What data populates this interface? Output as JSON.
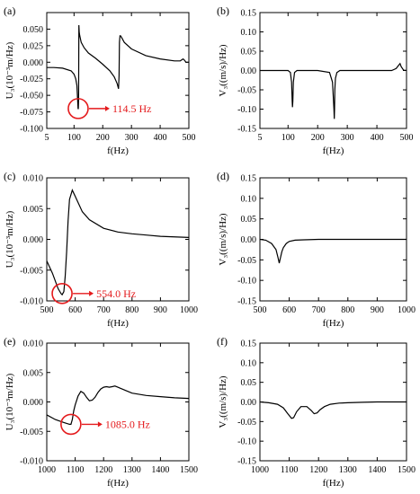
{
  "chart_data": [
    {
      "panel": "(a)",
      "type": "line",
      "xlabel": "f(Hz)",
      "ylabel": "U₃(10⁻³m/Hz)",
      "xlim": [
        5,
        500
      ],
      "ylim": [
        -0.1,
        0.075
      ],
      "xticks": [
        5,
        100,
        200,
        300,
        400,
        500
      ],
      "yticks": [
        -0.1,
        -0.075,
        -0.05,
        -0.025,
        0.0,
        0.025,
        0.05
      ],
      "ytick_labels": [
        "-0.100",
        "-0.075",
        "-0.050",
        "-0.025",
        "0.000",
        "0.025",
        "0.050"
      ],
      "series": [
        {
          "x": [
            5,
            30,
            60,
            90,
            100,
            106,
            110,
            114,
            115,
            116,
            117,
            118,
            120,
            125,
            135,
            150,
            175,
            200,
            225,
            240,
            250,
            255,
            257,
            258,
            260,
            262,
            265,
            275,
            300,
            350,
            400,
            450,
            470,
            480,
            485,
            490,
            500
          ],
          "y": [
            -0.008,
            -0.008,
            -0.009,
            -0.013,
            -0.018,
            -0.025,
            -0.035,
            -0.07,
            -0.07,
            -0.055,
            0.056,
            0.045,
            0.04,
            0.03,
            0.022,
            0.014,
            0.006,
            -0.003,
            -0.013,
            -0.022,
            -0.032,
            -0.04,
            -0.02,
            0.03,
            0.04,
            0.04,
            0.038,
            0.03,
            0.02,
            0.01,
            0.005,
            0.002,
            0.002,
            0.005,
            0.003,
            0.0,
            0.0
          ]
        }
      ],
      "annotation": {
        "text": "114.5 Hz",
        "x": 114.5,
        "y": -0.07
      }
    },
    {
      "panel": "(b)",
      "type": "line",
      "xlabel": "f(Hz)",
      "ylabel": "V₃((m/s)/Hz)",
      "xlim": [
        5,
        500
      ],
      "ylim": [
        -0.15,
        0.15
      ],
      "xticks": [
        5,
        100,
        200,
        300,
        400,
        500
      ],
      "yticks": [
        -0.15,
        -0.1,
        -0.05,
        0.0,
        0.05,
        0.1,
        0.15
      ],
      "ytick_labels": [
        "-0.15",
        "-0.10",
        "-0.05",
        "0.00",
        "0.05",
        "0.10",
        "0.15"
      ],
      "series": [
        {
          "x": [
            5,
            100,
            108,
            112,
            114,
            115,
            116,
            118,
            122,
            130,
            200,
            240,
            250,
            255,
            256,
            257,
            258,
            260,
            265,
            275,
            300,
            400,
            450,
            465,
            472,
            478,
            482,
            490,
            500
          ],
          "y": [
            0.0,
            0.0,
            -0.005,
            -0.03,
            -0.08,
            -0.095,
            -0.08,
            -0.03,
            -0.005,
            0.0,
            0.0,
            -0.005,
            -0.03,
            -0.1,
            -0.125,
            -0.1,
            -0.05,
            -0.02,
            -0.005,
            0.0,
            0.0,
            0.0,
            0.0,
            0.005,
            0.012,
            0.018,
            0.01,
            0.001,
            0.0
          ]
        }
      ]
    },
    {
      "panel": "(c)",
      "type": "line",
      "xlabel": "f(Hz)",
      "ylabel": "U₃(10⁻³m/Hz)",
      "xlim": [
        500,
        1000
      ],
      "ylim": [
        -0.01,
        0.01
      ],
      "xticks": [
        500,
        600,
        700,
        800,
        900,
        1000
      ],
      "yticks": [
        -0.01,
        -0.005,
        0.0,
        0.005,
        0.01
      ],
      "ytick_labels": [
        "-0.010",
        "-0.005",
        "0.000",
        "0.005",
        "0.010"
      ],
      "series": [
        {
          "x": [
            500,
            520,
            540,
            550,
            554,
            560,
            565,
            570,
            575,
            580,
            590,
            600,
            625,
            650,
            700,
            750,
            800,
            850,
            900,
            1000
          ],
          "y": [
            -0.0035,
            -0.0055,
            -0.008,
            -0.0088,
            -0.009,
            -0.0085,
            -0.006,
            -0.002,
            0.003,
            0.0065,
            0.008,
            0.007,
            0.0045,
            0.0032,
            0.0018,
            0.0012,
            0.0009,
            0.0007,
            0.0005,
            0.0003
          ]
        }
      ],
      "annotation": {
        "text": "554.0 Hz",
        "x": 554.0,
        "y": -0.0088
      }
    },
    {
      "panel": "(d)",
      "type": "line",
      "xlabel": "f(Hz)",
      "ylabel": "V₃((m/s)/Hz)",
      "xlim": [
        500,
        1000
      ],
      "ylim": [
        -0.15,
        0.15
      ],
      "xticks": [
        500,
        600,
        700,
        800,
        900,
        1000
      ],
      "yticks": [
        -0.15,
        -0.1,
        -0.05,
        0.0,
        0.05,
        0.1,
        0.15
      ],
      "ytick_labels": [
        "-0.15",
        "-0.10",
        "-0.05",
        "0.00",
        "0.05",
        "0.10",
        "0.15"
      ],
      "series": [
        {
          "x": [
            500,
            520,
            540,
            555,
            562,
            566,
            570,
            575,
            580,
            590,
            600,
            620,
            650,
            700,
            800,
            900,
            1000
          ],
          "y": [
            0.0,
            -0.002,
            -0.01,
            -0.025,
            -0.045,
            -0.058,
            -0.045,
            -0.03,
            -0.02,
            -0.01,
            -0.005,
            -0.002,
            -0.001,
            0.0,
            0.0,
            0.0,
            0.0
          ]
        }
      ]
    },
    {
      "panel": "(e)",
      "type": "line",
      "xlabel": "f(Hz)",
      "ylabel": "U₃(10⁻³m/Hz)",
      "xlim": [
        1000,
        1500
      ],
      "ylim": [
        -0.01,
        0.01
      ],
      "xticks": [
        1000,
        1100,
        1200,
        1300,
        1400,
        1500
      ],
      "yticks": [
        -0.01,
        -0.005,
        0.0,
        0.005,
        0.01
      ],
      "ytick_labels": [
        "-0.010",
        "-0.005",
        "0.000",
        "0.005",
        "0.010"
      ],
      "series": [
        {
          "x": [
            1000,
            1030,
            1060,
            1080,
            1085,
            1090,
            1095,
            1100,
            1110,
            1120,
            1130,
            1140,
            1150,
            1160,
            1170,
            1180,
            1190,
            1200,
            1210,
            1220,
            1230,
            1240,
            1250,
            1260,
            1280,
            1300,
            1350,
            1400,
            1450,
            1500
          ],
          "y": [
            -0.0022,
            -0.003,
            -0.0035,
            -0.0038,
            -0.0038,
            -0.003,
            -0.0015,
            -0.0005,
            0.001,
            0.0018,
            0.0015,
            0.0008,
            0.0002,
            0.0003,
            0.0008,
            0.0016,
            0.0022,
            0.0025,
            0.0026,
            0.0025,
            0.0026,
            0.0027,
            0.0025,
            0.0023,
            0.0019,
            0.0015,
            0.0011,
            0.0009,
            0.0007,
            0.0006
          ]
        }
      ],
      "annotation": {
        "text": "1085.0 Hz",
        "x": 1085.0,
        "y": -0.0038
      }
    },
    {
      "panel": "(f)",
      "type": "line",
      "xlabel": "f(Hz)",
      "ylabel": "V₃((m/s)/Hz)",
      "xlim": [
        1000,
        1500
      ],
      "ylim": [
        -0.15,
        0.15
      ],
      "xticks": [
        1000,
        1100,
        1200,
        1300,
        1400,
        1500
      ],
      "yticks": [
        -0.15,
        -0.1,
        -0.05,
        0.0,
        0.05,
        0.1,
        0.15
      ],
      "ytick_labels": [
        "-0.15",
        "-0.10",
        "-0.05",
        "0.00",
        "0.05",
        "0.10",
        "0.15"
      ],
      "series": [
        {
          "x": [
            1000,
            1030,
            1060,
            1080,
            1095,
            1108,
            1115,
            1125,
            1140,
            1160,
            1175,
            1185,
            1195,
            1205,
            1220,
            1240,
            1270,
            1300,
            1350,
            1400,
            1450,
            1500
          ],
          "y": [
            0.0,
            -0.002,
            -0.006,
            -0.015,
            -0.03,
            -0.042,
            -0.04,
            -0.025,
            -0.012,
            -0.012,
            -0.022,
            -0.03,
            -0.028,
            -0.02,
            -0.012,
            -0.006,
            -0.003,
            -0.002,
            -0.001,
            0.0,
            0.0,
            0.0
          ]
        }
      ]
    }
  ],
  "colors": {
    "line": "#000000",
    "annotation": "#e41a1c"
  }
}
